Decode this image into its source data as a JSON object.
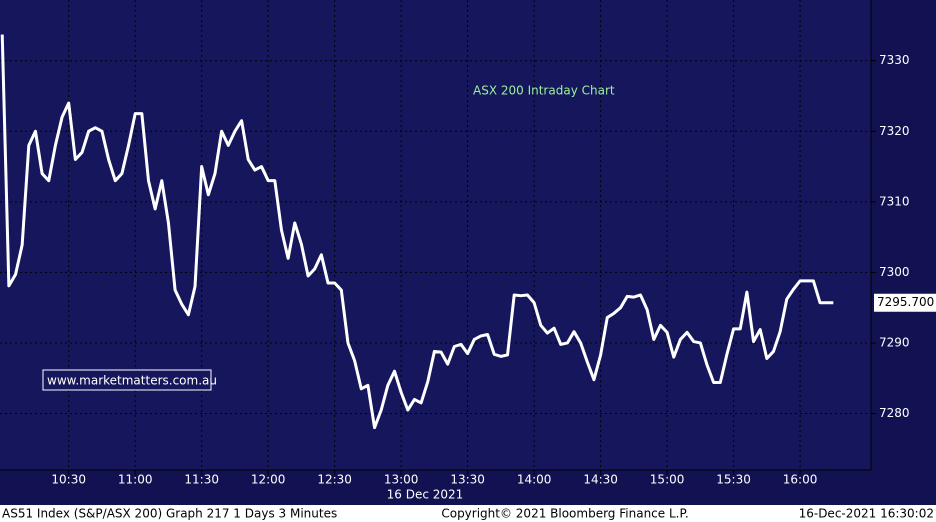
{
  "chart_data": {
    "type": "line",
    "title": "ASX 200 Intraday Chart",
    "watermark": "www.marketmatters.com.au",
    "x_axis_label": "16 Dec 2021",
    "footer": {
      "left": "AS51 Index (S&P/ASX 200) Graph 217 1 Days 3 Minutes",
      "center": "Copyright© 2021 Bloomberg Finance L.P.",
      "right": "16-Dec-2021 16:30:02"
    },
    "last_label": {
      "value": 7295.7,
      "label": "7295.700"
    },
    "x": [
      "10:00",
      "10:03",
      "10:06",
      "10:09",
      "10:12",
      "10:15",
      "10:18",
      "10:21",
      "10:24",
      "10:27",
      "10:30",
      "10:33",
      "10:36",
      "10:39",
      "10:42",
      "10:45",
      "10:48",
      "10:51",
      "10:54",
      "10:57",
      "11:00",
      "11:03",
      "11:06",
      "11:09",
      "11:12",
      "11:15",
      "11:18",
      "11:21",
      "11:24",
      "11:27",
      "11:30",
      "11:33",
      "11:36",
      "11:39",
      "11:42",
      "11:45",
      "11:48",
      "11:51",
      "11:54",
      "11:57",
      "12:00",
      "12:03",
      "12:06",
      "12:09",
      "12:12",
      "12:15",
      "12:18",
      "12:21",
      "12:24",
      "12:27",
      "12:30",
      "12:33",
      "12:36",
      "12:39",
      "12:42",
      "12:45",
      "12:48",
      "12:51",
      "12:54",
      "12:57",
      "13:00",
      "13:03",
      "13:06",
      "13:09",
      "13:12",
      "13:15",
      "13:18",
      "13:21",
      "13:24",
      "13:27",
      "13:30",
      "13:33",
      "13:36",
      "13:39",
      "13:42",
      "13:45",
      "13:48",
      "13:51",
      "13:54",
      "13:57",
      "14:00",
      "14:03",
      "14:06",
      "14:09",
      "14:12",
      "14:15",
      "14:18",
      "14:21",
      "14:24",
      "14:27",
      "14:30",
      "14:33",
      "14:36",
      "14:39",
      "14:42",
      "14:45",
      "14:48",
      "14:51",
      "14:54",
      "14:57",
      "15:00",
      "15:03",
      "15:06",
      "15:09",
      "15:12",
      "15:15",
      "15:18",
      "15:21",
      "15:24",
      "15:27",
      "15:30",
      "15:33",
      "15:36",
      "15:39",
      "15:42",
      "15:45",
      "15:48",
      "15:51",
      "15:54",
      "15:57",
      "16:00",
      "16:03",
      "16:06",
      "16:09",
      "16:12",
      "16:15"
    ],
    "series": [
      {
        "name": "AS51 Index",
        "color": "#ffffff",
        "values": [
          7333.7,
          7298.1,
          7299.7,
          7303.9,
          7318,
          7320,
          7314,
          7313,
          7318,
          7322,
          7324,
          7316,
          7317,
          7320,
          7320.5,
          7320,
          7316,
          7313,
          7314,
          7318,
          7322.5,
          7322.5,
          7313,
          7309,
          7313,
          7307,
          7297.5,
          7295.5,
          7294,
          7298,
          7315,
          7311,
          7314,
          7320,
          7318,
          7320,
          7321.5,
          7316,
          7314.5,
          7315,
          7313,
          7313,
          7306,
          7302,
          7307,
          7304,
          7299.5,
          7300.5,
          7302.5,
          7298.5,
          7298.5,
          7297.5,
          7290,
          7287.5,
          7283.5,
          7284,
          7278,
          7280.5,
          7284,
          7286,
          7283,
          7280.5,
          7282,
          7281.5,
          7284.5,
          7288.8,
          7288.7,
          7287,
          7289.5,
          7289.8,
          7288.5,
          7290.5,
          7291,
          7291.2,
          7288.4,
          7288.1,
          7288.3,
          7296.8,
          7296.7,
          7296.8,
          7295.7,
          7292.5,
          7291.4,
          7292.1,
          7289.8,
          7290,
          7291.6,
          7290,
          7287.3,
          7284.8,
          7288.3,
          7293.6,
          7294.2,
          7295,
          7296.6,
          7296.5,
          7296.8,
          7294.7,
          7290.5,
          7292.5,
          7291.5,
          7288,
          7290.5,
          7291.5,
          7290.2,
          7290,
          7286.9,
          7284.4,
          7284.4,
          7288.4,
          7292,
          7292,
          7297.2,
          7290.2,
          7291.9,
          7287.8,
          7288.8,
          7291.6,
          7296.2,
          7297.6,
          7298.8,
          7298.8,
          7298.8,
          7295.7,
          7295.7,
          7295.7
        ]
      }
    ],
    "xlim": [
      "09:59",
      "16:32"
    ],
    "xticks": [
      "10:30",
      "11:00",
      "11:30",
      "12:00",
      "12:30",
      "13:00",
      "13:30",
      "14:00",
      "14:30",
      "15:00",
      "15:30",
      "16:00"
    ],
    "ylim": [
      7272,
      7338.6
    ],
    "yticks": [
      7280,
      7290,
      7300,
      7310,
      7320,
      7330
    ],
    "grid": true
  }
}
